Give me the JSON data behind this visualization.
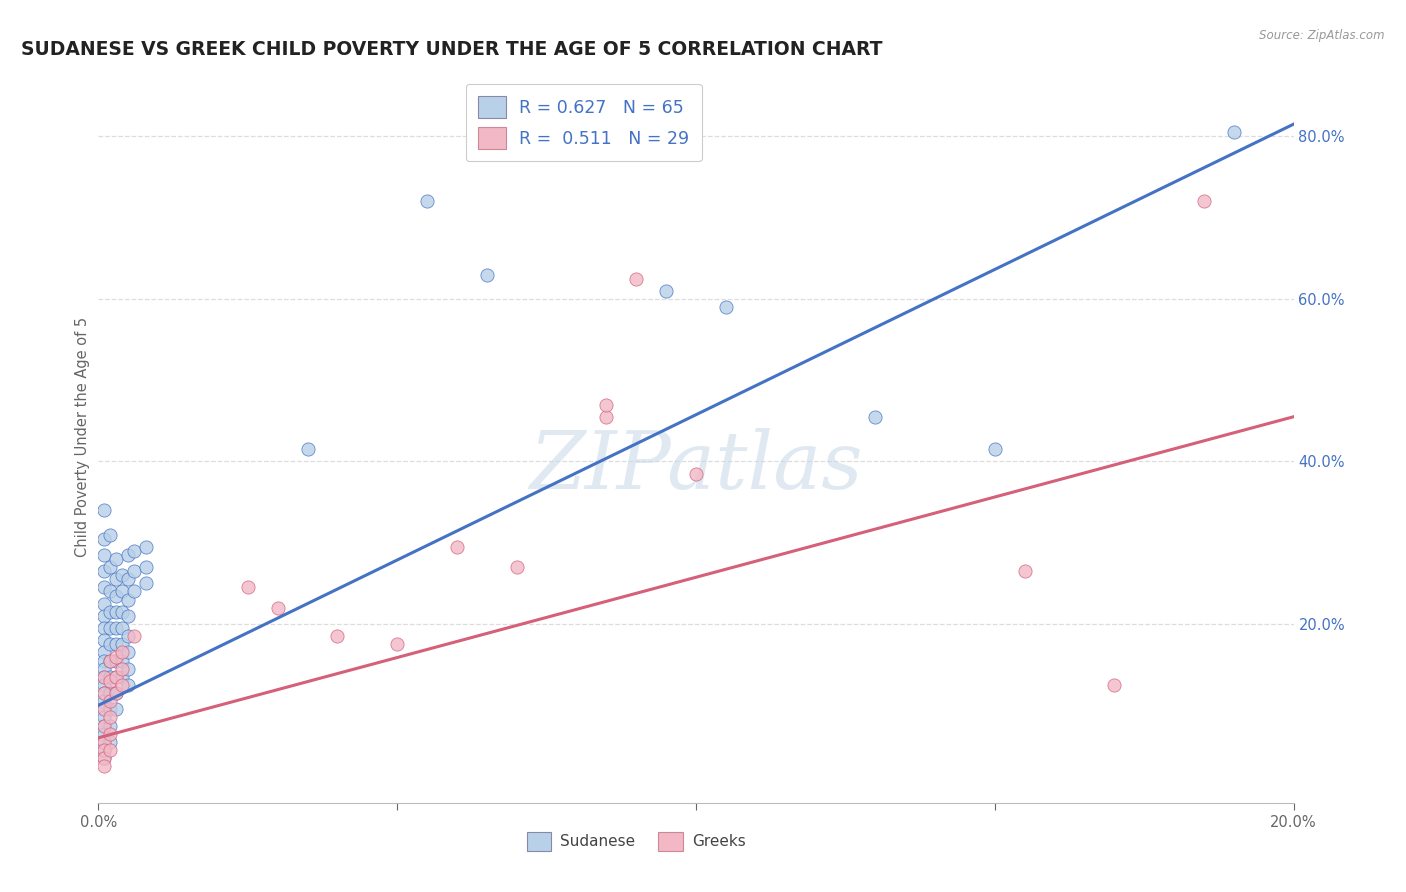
{
  "title": "SUDANESE VS GREEK CHILD POVERTY UNDER THE AGE OF 5 CORRELATION CHART",
  "source": "Source: ZipAtlas.com",
  "ylabel": "Child Poverty Under the Age of 5",
  "xlim": [
    0,
    0.2
  ],
  "ylim": [
    -0.02,
    0.88
  ],
  "xticks": [
    0.0,
    0.05,
    0.1,
    0.15,
    0.2
  ],
  "yticks": [
    0.2,
    0.4,
    0.6,
    0.8
  ],
  "sudanese_color": "#b8d0e8",
  "greek_color": "#f2b8c6",
  "line_blue": "#4472c4",
  "line_pink": "#d4607a",
  "sudanese_scatter": [
    [
      0.001,
      0.34
    ],
    [
      0.001,
      0.305
    ],
    [
      0.001,
      0.285
    ],
    [
      0.001,
      0.265
    ],
    [
      0.001,
      0.245
    ],
    [
      0.001,
      0.225
    ],
    [
      0.001,
      0.21
    ],
    [
      0.001,
      0.195
    ],
    [
      0.001,
      0.18
    ],
    [
      0.001,
      0.165
    ],
    [
      0.001,
      0.155
    ],
    [
      0.001,
      0.145
    ],
    [
      0.001,
      0.135
    ],
    [
      0.001,
      0.125
    ],
    [
      0.001,
      0.115
    ],
    [
      0.001,
      0.105
    ],
    [
      0.001,
      0.095
    ],
    [
      0.001,
      0.085
    ],
    [
      0.001,
      0.075
    ],
    [
      0.001,
      0.065
    ],
    [
      0.001,
      0.055
    ],
    [
      0.001,
      0.045
    ],
    [
      0.001,
      0.035
    ],
    [
      0.002,
      0.31
    ],
    [
      0.002,
      0.27
    ],
    [
      0.002,
      0.24
    ],
    [
      0.002,
      0.215
    ],
    [
      0.002,
      0.195
    ],
    [
      0.002,
      0.175
    ],
    [
      0.002,
      0.155
    ],
    [
      0.002,
      0.135
    ],
    [
      0.002,
      0.115
    ],
    [
      0.002,
      0.095
    ],
    [
      0.002,
      0.075
    ],
    [
      0.002,
      0.055
    ],
    [
      0.003,
      0.28
    ],
    [
      0.003,
      0.255
    ],
    [
      0.003,
      0.235
    ],
    [
      0.003,
      0.215
    ],
    [
      0.003,
      0.195
    ],
    [
      0.003,
      0.175
    ],
    [
      0.003,
      0.155
    ],
    [
      0.003,
      0.135
    ],
    [
      0.003,
      0.115
    ],
    [
      0.003,
      0.095
    ],
    [
      0.004,
      0.26
    ],
    [
      0.004,
      0.24
    ],
    [
      0.004,
      0.215
    ],
    [
      0.004,
      0.195
    ],
    [
      0.004,
      0.175
    ],
    [
      0.004,
      0.155
    ],
    [
      0.004,
      0.135
    ],
    [
      0.005,
      0.285
    ],
    [
      0.005,
      0.255
    ],
    [
      0.005,
      0.23
    ],
    [
      0.005,
      0.21
    ],
    [
      0.005,
      0.185
    ],
    [
      0.005,
      0.165
    ],
    [
      0.005,
      0.145
    ],
    [
      0.005,
      0.125
    ],
    [
      0.006,
      0.29
    ],
    [
      0.006,
      0.265
    ],
    [
      0.006,
      0.24
    ],
    [
      0.008,
      0.295
    ],
    [
      0.008,
      0.27
    ],
    [
      0.008,
      0.25
    ],
    [
      0.035,
      0.415
    ],
    [
      0.055,
      0.72
    ],
    [
      0.065,
      0.63
    ],
    [
      0.095,
      0.61
    ],
    [
      0.105,
      0.59
    ],
    [
      0.13,
      0.455
    ],
    [
      0.15,
      0.415
    ],
    [
      0.19,
      0.805
    ]
  ],
  "greek_scatter": [
    [
      0.001,
      0.135
    ],
    [
      0.001,
      0.115
    ],
    [
      0.001,
      0.095
    ],
    [
      0.001,
      0.075
    ],
    [
      0.001,
      0.055
    ],
    [
      0.001,
      0.045
    ],
    [
      0.001,
      0.035
    ],
    [
      0.001,
      0.025
    ],
    [
      0.002,
      0.155
    ],
    [
      0.002,
      0.13
    ],
    [
      0.002,
      0.105
    ],
    [
      0.002,
      0.085
    ],
    [
      0.002,
      0.065
    ],
    [
      0.002,
      0.045
    ],
    [
      0.003,
      0.16
    ],
    [
      0.003,
      0.135
    ],
    [
      0.003,
      0.115
    ],
    [
      0.004,
      0.165
    ],
    [
      0.004,
      0.145
    ],
    [
      0.004,
      0.125
    ],
    [
      0.006,
      0.185
    ],
    [
      0.025,
      0.245
    ],
    [
      0.03,
      0.22
    ],
    [
      0.04,
      0.185
    ],
    [
      0.05,
      0.175
    ],
    [
      0.06,
      0.295
    ],
    [
      0.07,
      0.27
    ],
    [
      0.085,
      0.455
    ],
    [
      0.085,
      0.47
    ],
    [
      0.09,
      0.625
    ],
    [
      0.1,
      0.385
    ],
    [
      0.155,
      0.265
    ],
    [
      0.17,
      0.125
    ],
    [
      0.185,
      0.72
    ]
  ],
  "blue_line_x": [
    0.0,
    0.2
  ],
  "blue_line_y": [
    0.1,
    0.815
  ],
  "pink_line_x": [
    0.0,
    0.2
  ],
  "pink_line_y": [
    0.06,
    0.455
  ],
  "watermark": "ZIPatlas",
  "background_color": "#ffffff",
  "grid_color": "#dddddd",
  "title_color": "#222222",
  "title_fontsize": 13.5,
  "axis_label_fontsize": 10.5
}
